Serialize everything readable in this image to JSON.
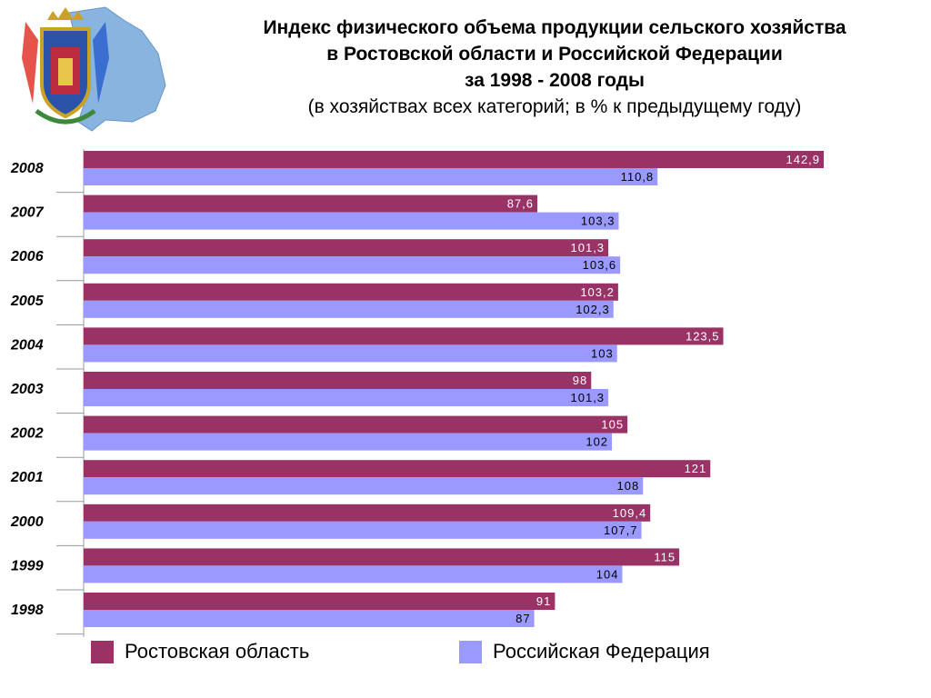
{
  "header": {
    "title_line1": "Индекс физического объема продукции сельского хозяйства",
    "title_line2": "в Ростовской области и Российской Федерации",
    "title_line3": "за 1998 - 2008 годы",
    "subtitle": "(в хозяйствах всех категорий; в % к предыдущему году)"
  },
  "emblem": {
    "icon": "rostov-oblast-coat-of-arms-icon"
  },
  "colors": {
    "rostov": "#993366",
    "russia": "#9999ff",
    "axis": "#999999"
  },
  "chart_data": {
    "type": "bar",
    "orientation": "horizontal",
    "categories": [
      "2008",
      "2007",
      "2006",
      "2005",
      "2004",
      "2003",
      "2002",
      "2001",
      "2000",
      "1999",
      "1998"
    ],
    "series": [
      {
        "name": "Ростовская область",
        "values": [
          142.9,
          87.6,
          101.3,
          103.2,
          123.5,
          98,
          105,
          121,
          109.4,
          115,
          91
        ],
        "labels": [
          "142,9",
          "87,6",
          "101,3",
          "103,2",
          "123,5",
          "98",
          "105",
          "121",
          "109,4",
          "115",
          "91"
        ]
      },
      {
        "name": "Российская Федерация",
        "values": [
          110.8,
          103.3,
          103.6,
          102.3,
          103,
          101.3,
          102,
          108,
          107.7,
          104,
          87
        ],
        "labels": [
          "110,8",
          "103,3",
          "103,6",
          "102,3",
          "103",
          "101,3",
          "102",
          "108",
          "107,7",
          "104",
          "87"
        ]
      }
    ],
    "xlim": [
      0,
      145
    ],
    "grid": false,
    "legend_position": "bottom"
  },
  "legend": {
    "rostov_label": "Ростовская область",
    "russia_label": "Российская Федерация"
  }
}
